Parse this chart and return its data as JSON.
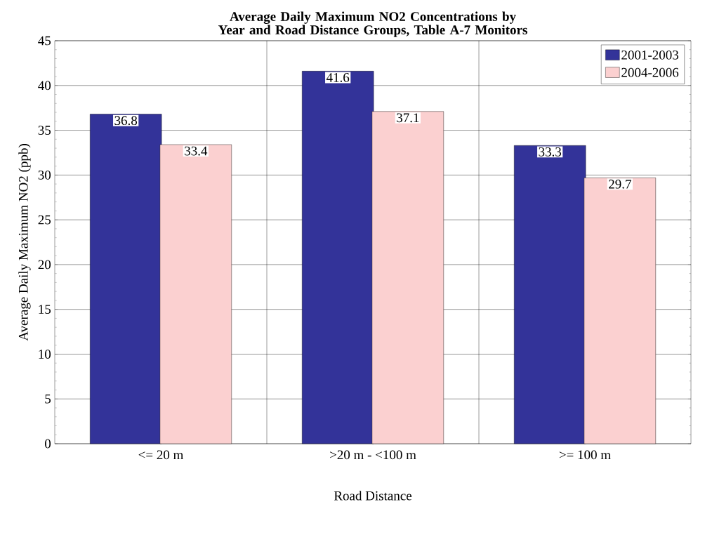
{
  "chart_data": {
    "type": "bar",
    "title": "Average Daily Maximum NO2 Concentrations by Year and Road Distance Groups, Table A-7 Monitors",
    "xlabel": "Road Distance",
    "ylabel": "Average Daily Maximum NO2 (ppb)",
    "categories": [
      "<= 20 m",
      ">20 m - <100 m",
      ">= 100 m"
    ],
    "series": [
      {
        "name": "2001-2003",
        "color": "#333399",
        "values": [
          36.8,
          41.6,
          33.3
        ]
      },
      {
        "name": "2004-2006",
        "color": "#fbd0d0",
        "values": [
          33.4,
          37.1,
          29.7
        ]
      }
    ],
    "ylim": [
      0,
      45
    ],
    "yticks": [
      0,
      5,
      10,
      15,
      20,
      25,
      30,
      35,
      40,
      45
    ],
    "grid": true,
    "legend": "top right",
    "data_labels": true
  }
}
